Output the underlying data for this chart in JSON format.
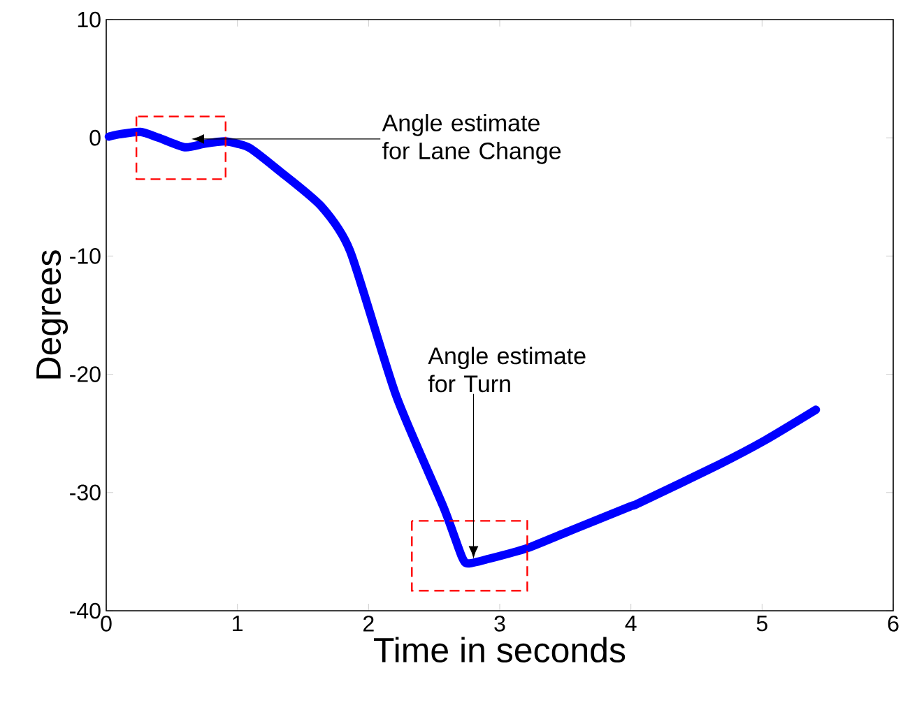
{
  "chart_data": {
    "type": "line",
    "xlabel": "Time in seconds",
    "ylabel": "Degrees",
    "xlim": [
      0,
      6
    ],
    "ylim": [
      -40,
      10
    ],
    "xticks": [
      0,
      1,
      2,
      3,
      4,
      5,
      6
    ],
    "yticks": [
      -40,
      -30,
      -20,
      -10,
      0,
      10
    ],
    "grid": false,
    "x": [
      0.02,
      0.1,
      0.26,
      0.4,
      0.6,
      0.75,
      0.9,
      1.0,
      1.1,
      1.32,
      1.64,
      1.86,
      2.21,
      2.57,
      2.71,
      2.76,
      2.92,
      3.21,
      3.5,
      3.99,
      4.06,
      4.66,
      5.02,
      5.41
    ],
    "series": [
      {
        "color": "#0000ff",
        "values": [
          0.1,
          0.3,
          0.5,
          0.0,
          -0.8,
          -0.5,
          -0.3,
          -0.5,
          -0.9,
          -2.8,
          -5.8,
          -9.6,
          -21.8,
          -31.2,
          -35.4,
          -36.0,
          -35.6,
          -34.7,
          -33.4,
          -31.2,
          -30.9,
          -27.7,
          -25.6,
          -23.0
        ]
      }
    ],
    "annotations": [
      {
        "text": "Angle estimate for Lane Change",
        "x": 0.65,
        "y": -0.1
      },
      {
        "text": "Angle estimate for Turn",
        "x": 2.8,
        "y": -35.6
      }
    ]
  }
}
